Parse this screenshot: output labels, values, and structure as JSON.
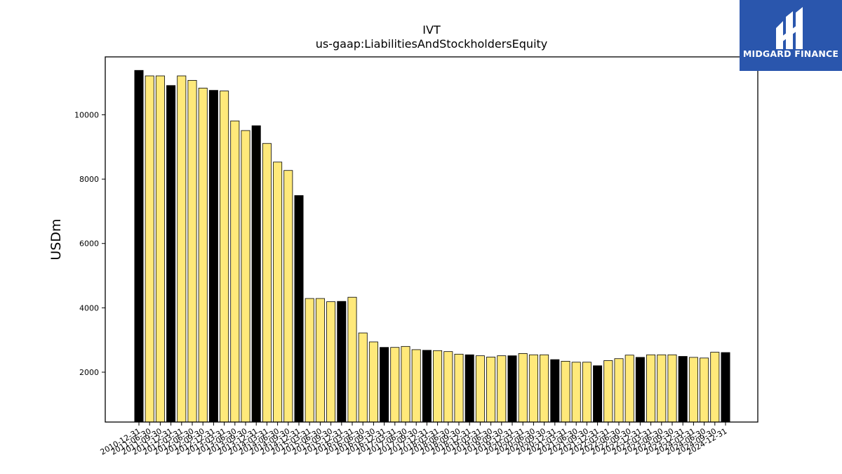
{
  "brand": {
    "name": "MIDGARD FINANCE",
    "logo_icon": "midgard-mh-monogram",
    "logo_bg": "#2a56ad",
    "logo_fg": "#ffffff"
  },
  "colors": {
    "annual_bar": "#000000",
    "quarterly_bar": "#ffe97a",
    "bar_edge": "#000000"
  },
  "chart_data": {
    "type": "bar",
    "title": "IVT",
    "subtitle": "us-gaap:LiabilitiesAndStockholdersEquity",
    "xlabel": "",
    "ylabel": "USDm",
    "ylim": [
      450,
      11800
    ],
    "yticks": [
      2000,
      4000,
      6000,
      8000,
      10000
    ],
    "grid": false,
    "categories": [
      "2010-12-31",
      "2011-06-30",
      "2011-09-30",
      "2011-12-31",
      "2012-03-31",
      "2012-06-30",
      "2012-09-30",
      "2012-12-31",
      "2013-03-31",
      "2013-06-30",
      "2013-09-30",
      "2013-12-31",
      "2014-03-31",
      "2014-06-30",
      "2014-09-30",
      "2014-12-31",
      "2015-03-31",
      "2015-06-30",
      "2015-09-30",
      "2015-12-31",
      "2016-03-31",
      "2016-06-30",
      "2016-09-30",
      "2016-12-31",
      "2017-03-31",
      "2017-06-30",
      "2017-09-30",
      "2017-12-31",
      "2018-03-31",
      "2018-06-30",
      "2018-09-30",
      "2018-12-31",
      "2019-03-31",
      "2019-06-30",
      "2019-09-30",
      "2019-12-31",
      "2020-03-31",
      "2020-06-30",
      "2020-09-30",
      "2020-12-31",
      "2021-03-31",
      "2021-06-30",
      "2021-09-30",
      "2021-12-31",
      "2022-03-31",
      "2022-06-30",
      "2022-09-30",
      "2022-12-31",
      "2023-03-31",
      "2023-06-30",
      "2023-09-30",
      "2023-12-31",
      "2024-03-31",
      "2024-06-30",
      "2024-09-30",
      "2024-12-31"
    ],
    "values": [
      11380,
      11210,
      11210,
      10910,
      11210,
      11070,
      10830,
      10760,
      10740,
      9810,
      9510,
      9660,
      9110,
      8530,
      8270,
      7490,
      4290,
      4290,
      4190,
      4200,
      4330,
      3220,
      2940,
      2770,
      2770,
      2800,
      2700,
      2680,
      2670,
      2640,
      2560,
      2540,
      2510,
      2470,
      2510,
      2510,
      2580,
      2540,
      2540,
      2390,
      2340,
      2310,
      2310,
      2200,
      2360,
      2420,
      2530,
      2460,
      2540,
      2540,
      2540,
      2490,
      2460,
      2440,
      2620,
      2610
    ],
    "annual": [
      true,
      false,
      false,
      true,
      false,
      false,
      false,
      true,
      false,
      false,
      false,
      true,
      false,
      false,
      false,
      true,
      false,
      false,
      false,
      true,
      false,
      false,
      false,
      true,
      false,
      false,
      false,
      true,
      false,
      false,
      false,
      true,
      false,
      false,
      false,
      true,
      false,
      false,
      false,
      true,
      false,
      false,
      false,
      true,
      false,
      false,
      false,
      true,
      false,
      false,
      false,
      true,
      false,
      false,
      false,
      true
    ]
  }
}
